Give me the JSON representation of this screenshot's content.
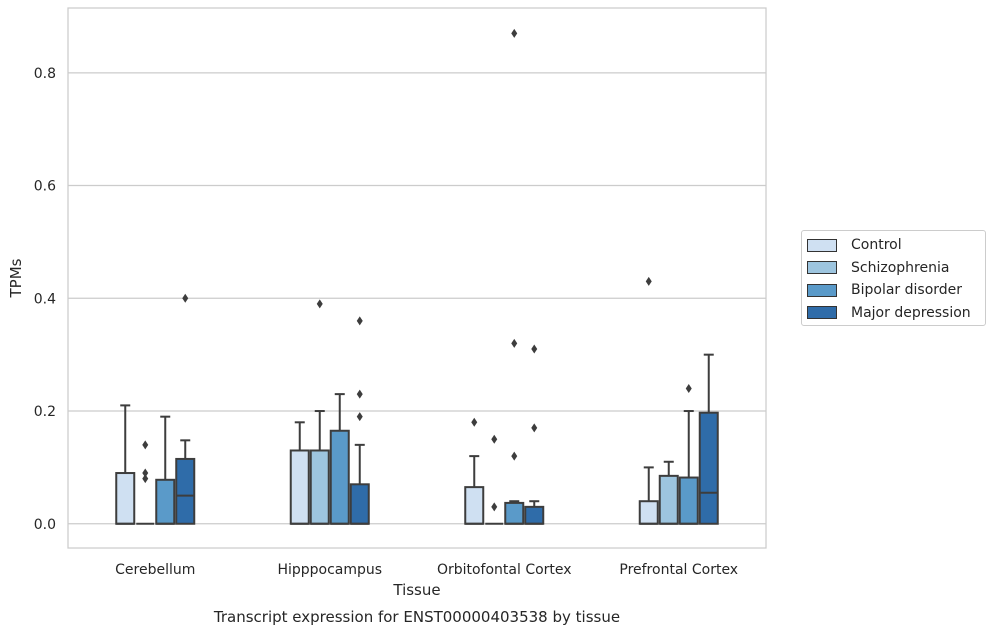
{
  "chart_data": {
    "type": "box",
    "title": "",
    "caption": "Transcript expression for ENST00000403538 by tissue",
    "xlabel": "Tissue",
    "ylabel": "TPMs",
    "ylim": [
      -0.043,
      0.915
    ],
    "yticks": [
      0.0,
      0.2,
      0.4,
      0.6,
      0.8
    ],
    "ytick_labels": [
      "0.0",
      "0.2",
      "0.4",
      "0.6",
      "0.8"
    ],
    "grid": "horizontal",
    "legend_position": "right",
    "categories": [
      "Cerebellum",
      "Hipppocampus",
      "Orbitofontal Cortex",
      "Prefrontal Cortex"
    ],
    "series": [
      {
        "name": "Control",
        "color": "#cfe0f2",
        "boxes": [
          {
            "q1": 0.0,
            "median": 0.0,
            "q3": 0.09,
            "whisker_low": 0.0,
            "whisker_high": 0.21,
            "outliers": []
          },
          {
            "q1": 0.0,
            "median": 0.0,
            "q3": 0.13,
            "whisker_low": 0.0,
            "whisker_high": 0.18,
            "outliers": []
          },
          {
            "q1": 0.0,
            "median": 0.0,
            "q3": 0.065,
            "whisker_low": 0.0,
            "whisker_high": 0.12,
            "outliers": [
              0.18
            ]
          },
          {
            "q1": 0.0,
            "median": 0.0,
            "q3": 0.04,
            "whisker_low": 0.0,
            "whisker_high": 0.1,
            "outliers": [
              0.43
            ]
          }
        ]
      },
      {
        "name": "Schizophrenia",
        "color": "#9dc5df",
        "boxes": [
          {
            "q1": 0.0,
            "median": 0.0,
            "q3": 0.0,
            "whisker_low": 0.0,
            "whisker_high": 0.0,
            "outliers": [
              0.08,
              0.09,
              0.14
            ]
          },
          {
            "q1": 0.0,
            "median": 0.0,
            "q3": 0.13,
            "whisker_low": 0.0,
            "whisker_high": 0.2,
            "outliers": [
              0.39
            ]
          },
          {
            "q1": 0.0,
            "median": 0.0,
            "q3": 0.0,
            "whisker_low": 0.0,
            "whisker_high": 0.0,
            "outliers": [
              0.03,
              0.15
            ]
          },
          {
            "q1": 0.0,
            "median": 0.0,
            "q3": 0.085,
            "whisker_low": 0.0,
            "whisker_high": 0.11,
            "outliers": []
          }
        ]
      },
      {
        "name": "Bipolar disorder",
        "color": "#5a9ac9",
        "boxes": [
          {
            "q1": 0.0,
            "median": 0.0,
            "q3": 0.078,
            "whisker_low": 0.0,
            "whisker_high": 0.19,
            "outliers": []
          },
          {
            "q1": 0.0,
            "median": 0.0,
            "q3": 0.165,
            "whisker_low": 0.0,
            "whisker_high": 0.23,
            "outliers": []
          },
          {
            "q1": 0.0,
            "median": 0.0,
            "q3": 0.037,
            "whisker_low": 0.0,
            "whisker_high": 0.04,
            "outliers": [
              0.12,
              0.32,
              0.87
            ]
          },
          {
            "q1": 0.0,
            "median": 0.0,
            "q3": 0.082,
            "whisker_low": 0.0,
            "whisker_high": 0.2,
            "outliers": [
              0.24
            ]
          }
        ]
      },
      {
        "name": "Major depression",
        "color": "#2f6ca9",
        "boxes": [
          {
            "q1": 0.0,
            "median": 0.05,
            "q3": 0.115,
            "whisker_low": 0.0,
            "whisker_high": 0.148,
            "outliers": [
              0.4
            ]
          },
          {
            "q1": 0.0,
            "median": 0.0,
            "q3": 0.07,
            "whisker_low": 0.0,
            "whisker_high": 0.14,
            "outliers": [
              0.19,
              0.23,
              0.36
            ]
          },
          {
            "q1": 0.0,
            "median": 0.0,
            "q3": 0.03,
            "whisker_low": 0.0,
            "whisker_high": 0.04,
            "outliers": [
              0.17,
              0.31
            ]
          },
          {
            "q1": 0.0,
            "median": 0.055,
            "q3": 0.197,
            "whisker_low": 0.0,
            "whisker_high": 0.3,
            "outliers": []
          }
        ]
      }
    ]
  }
}
